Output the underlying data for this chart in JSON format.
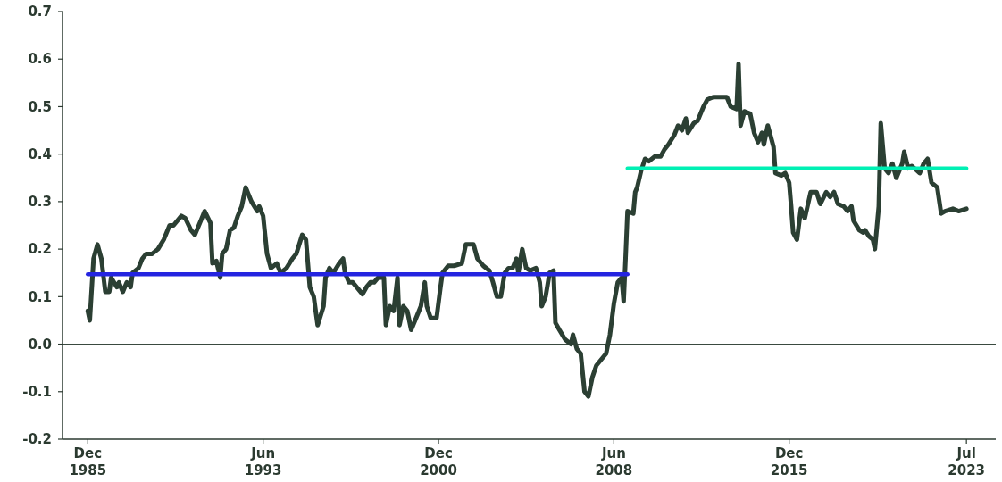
{
  "chart_data": {
    "type": "line",
    "xlim": [
      "1984-11",
      "2024-10"
    ],
    "xticks": [
      {
        "value": "1985-12",
        "label": "Dec 1985"
      },
      {
        "value": "1993-06",
        "label": "Jun 1993"
      },
      {
        "value": "2000-12",
        "label": "Dec 2000"
      },
      {
        "value": "2008-06",
        "label": "Jun 2008"
      },
      {
        "value": "2015-12",
        "label": "Dec 2015"
      },
      {
        "value": "2023-07",
        "label": "Jul 2023"
      }
    ],
    "ylim": [
      -0.2,
      0.7
    ],
    "yticks": [
      -0.2,
      -0.1,
      {
        "value": 0,
        "label": "0.0"
      },
      0.1,
      0.2,
      0.3,
      0.4,
      0.5,
      0.6,
      0.7
    ],
    "grid": false,
    "ref_lines": [
      {
        "axis": "y",
        "value": 0,
        "color": "#3a4a40"
      }
    ],
    "series": [
      {
        "color": "#2b3f33",
        "x": [
          "1985-12",
          "1986-01",
          "1986-03",
          "1986-05",
          "1986-07",
          "1986-09",
          "1986-11",
          "1986-12",
          "1987-03",
          "1987-04",
          "1987-06",
          "1987-08",
          "1987-10",
          "1987-11",
          "1988-02",
          "1988-04",
          "1988-06",
          "1988-09",
          "1988-12",
          "1989-03",
          "1989-06",
          "1989-08",
          "1989-12",
          "1990-02",
          "1990-05",
          "1990-07",
          "1990-10",
          "1990-12",
          "1991-03",
          "1991-04",
          "1991-06",
          "1991-08",
          "1991-09",
          "1991-11",
          "1992-01",
          "1992-03",
          "1992-05",
          "1992-07",
          "1992-09",
          "1992-12",
          "1993-03",
          "1993-04",
          "1993-06",
          "1993-08",
          "1993-10",
          "1994-01",
          "1994-03",
          "1994-06",
          "1994-09",
          "1994-11",
          "1995-02",
          "1995-04",
          "1995-06",
          "1995-08",
          "1995-10",
          "1996-01",
          "1996-02",
          "1996-04",
          "1996-06",
          "1996-09",
          "1996-11",
          "1996-12",
          "1997-02",
          "1997-04",
          "1997-06",
          "1997-09",
          "1997-11",
          "1998-01",
          "1998-03",
          "1998-05",
          "1998-08",
          "1998-09",
          "1998-11",
          "1999-01",
          "1999-03",
          "1999-04",
          "1999-06",
          "1999-08",
          "1999-10",
          "1999-12",
          "2000-03",
          "2000-05",
          "2000-06",
          "2000-08",
          "2000-11",
          "2001-01",
          "2001-02",
          "2001-05",
          "2001-08",
          "2001-12",
          "2002-02",
          "2002-06",
          "2002-08",
          "2002-11",
          "2003-02",
          "2003-04",
          "2003-06",
          "2003-08",
          "2003-10",
          "2003-12",
          "2004-02",
          "2004-04",
          "2004-05",
          "2004-07",
          "2004-09",
          "2004-11",
          "2005-02",
          "2005-04",
          "2005-05",
          "2005-07",
          "2005-09",
          "2005-11",
          "2005-12",
          "2006-02",
          "2006-05",
          "2006-08",
          "2006-09",
          "2006-11",
          "2007-01",
          "2007-03",
          "2007-05",
          "2007-07",
          "2007-09",
          "2007-12",
          "2008-02",
          "2008-04",
          "2008-06",
          "2008-08",
          "2008-10",
          "2008-11",
          "2008-12",
          "2009-01",
          "2009-04",
          "2009-05",
          "2009-06",
          "2009-08",
          "2009-10",
          "2009-12",
          "2010-03",
          "2010-06",
          "2010-08",
          "2010-10",
          "2011-01",
          "2011-03",
          "2011-05",
          "2011-07",
          "2011-08",
          "2011-11",
          "2012-01",
          "2012-04",
          "2012-06",
          "2012-09",
          "2012-12",
          "2013-04",
          "2013-06",
          "2013-09",
          "2013-10",
          "2013-11",
          "2014-01",
          "2014-04",
          "2014-06",
          "2014-08",
          "2014-10",
          "2014-11",
          "2015-01",
          "2015-04",
          "2015-05",
          "2015-08",
          "2015-10",
          "2015-12",
          "2016-01",
          "2016-02",
          "2016-04",
          "2016-06",
          "2016-08",
          "2016-11",
          "2017-02",
          "2017-04",
          "2017-07",
          "2017-09",
          "2017-11",
          "2018-01",
          "2018-04",
          "2018-06",
          "2018-08",
          "2018-09",
          "2018-12",
          "2019-02",
          "2019-03",
          "2019-05",
          "2019-07",
          "2019-08",
          "2019-10",
          "2019-11",
          "2020-01",
          "2020-03",
          "2020-05",
          "2020-07",
          "2020-10",
          "2020-11",
          "2021-01",
          "2021-03",
          "2021-07",
          "2021-09",
          "2021-11",
          "2022-01",
          "2022-04",
          "2022-06",
          "2022-08",
          "2022-12",
          "2023-03",
          "2023-07"
        ],
        "values": [
          0.07,
          0.05,
          0.18,
          0.21,
          0.18,
          0.11,
          0.11,
          0.14,
          0.12,
          0.13,
          0.11,
          0.13,
          0.12,
          0.15,
          0.16,
          0.18,
          0.19,
          0.19,
          0.2,
          0.22,
          0.25,
          0.25,
          0.27,
          0.265,
          0.24,
          0.23,
          0.26,
          0.28,
          0.255,
          0.17,
          0.175,
          0.14,
          0.19,
          0.2,
          0.24,
          0.245,
          0.27,
          0.29,
          0.33,
          0.3,
          0.28,
          0.29,
          0.27,
          0.19,
          0.16,
          0.17,
          0.15,
          0.16,
          0.18,
          0.19,
          0.23,
          0.22,
          0.12,
          0.1,
          0.04,
          0.08,
          0.14,
          0.16,
          0.15,
          0.17,
          0.18,
          0.15,
          0.13,
          0.13,
          0.12,
          0.105,
          0.12,
          0.13,
          0.13,
          0.14,
          0.14,
          0.04,
          0.08,
          0.07,
          0.14,
          0.04,
          0.08,
          0.07,
          0.03,
          0.05,
          0.08,
          0.13,
          0.08,
          0.055,
          0.055,
          0.12,
          0.15,
          0.165,
          0.165,
          0.17,
          0.21,
          0.21,
          0.18,
          0.165,
          0.155,
          0.13,
          0.1,
          0.1,
          0.15,
          0.16,
          0.16,
          0.18,
          0.15,
          0.2,
          0.16,
          0.155,
          0.16,
          0.13,
          0.08,
          0.1,
          0.15,
          0.155,
          0.045,
          0.03,
          0.01,
          0.0,
          0.02,
          -0.01,
          -0.02,
          -0.1,
          -0.11,
          -0.07,
          -0.045,
          -0.03,
          -0.02,
          0.02,
          0.085,
          0.13,
          0.14,
          0.09,
          0.18,
          0.28,
          0.275,
          0.32,
          0.33,
          0.365,
          0.39,
          0.385,
          0.395,
          0.395,
          0.41,
          0.42,
          0.44,
          0.46,
          0.45,
          0.475,
          0.445,
          0.465,
          0.47,
          0.5,
          0.515,
          0.52,
          0.52,
          0.52,
          0.5,
          0.495,
          0.59,
          0.46,
          0.49,
          0.485,
          0.445,
          0.425,
          0.445,
          0.42,
          0.46,
          0.415,
          0.36,
          0.355,
          0.36,
          0.34,
          0.29,
          0.235,
          0.22,
          0.285,
          0.265,
          0.32,
          0.32,
          0.295,
          0.32,
          0.31,
          0.32,
          0.295,
          0.29,
          0.28,
          0.29,
          0.26,
          0.24,
          0.235,
          0.24,
          0.227,
          0.22,
          0.2,
          0.29,
          0.465,
          0.37,
          0.36,
          0.38,
          0.35,
          0.38,
          0.405,
          0.37,
          0.375,
          0.36,
          0.38,
          0.39,
          0.34,
          0.33,
          0.275,
          0.28,
          0.285,
          0.28,
          0.285
        ]
      },
      {
        "type": "line",
        "color": "#2424e0",
        "x": [
          "1985-12",
          "2009-01"
        ],
        "values": [
          0.147,
          0.147
        ]
      },
      {
        "type": "line",
        "color": "#00f0b4",
        "x": [
          "2009-01",
          "2023-07"
        ],
        "values": [
          0.37,
          0.37
        ]
      }
    ]
  }
}
